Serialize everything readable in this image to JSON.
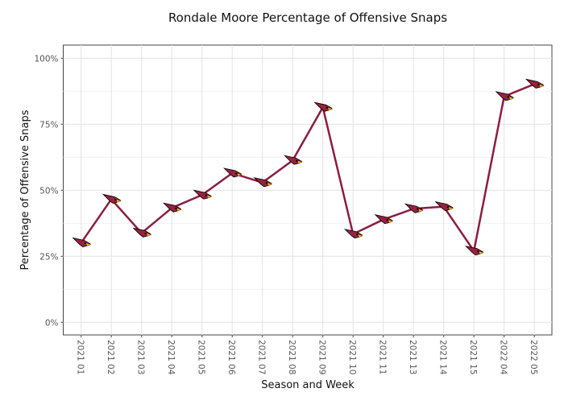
{
  "chart_data": {
    "type": "line",
    "title": "Rondale Moore Percentage of Offensive Snaps",
    "xlabel": "Season and Week",
    "ylabel": "Percentage of Offensive Snaps",
    "categories": [
      "2021 01",
      "2021 02",
      "2021 03",
      "2021 04",
      "2021 05",
      "2021 06",
      "2021 07",
      "2021 08",
      "2021 09",
      "2021 10",
      "2021 11",
      "2021 13",
      "2021 14",
      "2021 15",
      "2022 04",
      "2022 05"
    ],
    "values": [
      30.1,
      46.6,
      33.8,
      43.3,
      48.2,
      56.5,
      52.9,
      61.3,
      81.4,
      33.4,
      38.9,
      43.0,
      43.8,
      27.0,
      85.5,
      90.2
    ],
    "ylim": [
      0,
      100
    ],
    "yticks": [
      0,
      25,
      50,
      75,
      100
    ],
    "ytick_labels": [
      "0%",
      "25%",
      "50%",
      "75%",
      "100%"
    ],
    "grid": true,
    "marker": "cardinals-logo-icon",
    "colors": {
      "line": "#8B1E3F",
      "marker": "#97233F",
      "beak": "#FFB612"
    }
  }
}
